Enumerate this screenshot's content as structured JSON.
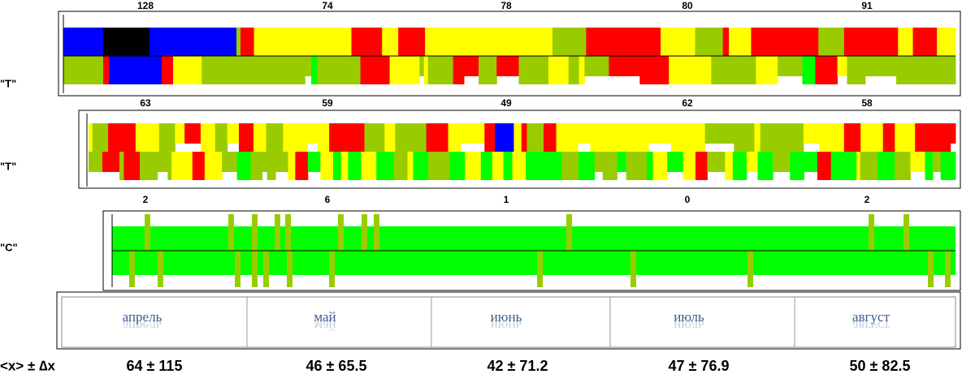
{
  "panels": [
    {
      "label": "\"T\"",
      "counts": [
        128,
        74,
        78,
        80,
        91
      ]
    },
    {
      "label": "\"T\"",
      "counts": [
        63,
        59,
        49,
        62,
        58
      ]
    },
    {
      "label": "\"C\"",
      "counts": [
        2,
        6,
        1,
        0,
        2
      ]
    }
  ],
  "months": [
    "апрель",
    "май",
    "июнь",
    "июль",
    "август"
  ],
  "stats": {
    "label": "<x> ± ∆x",
    "values": [
      "64 ± 115",
      "46 ± 65.5",
      "42 ± 71.2",
      "47 ± 76.9",
      "50 ± 82.5"
    ]
  }
}
